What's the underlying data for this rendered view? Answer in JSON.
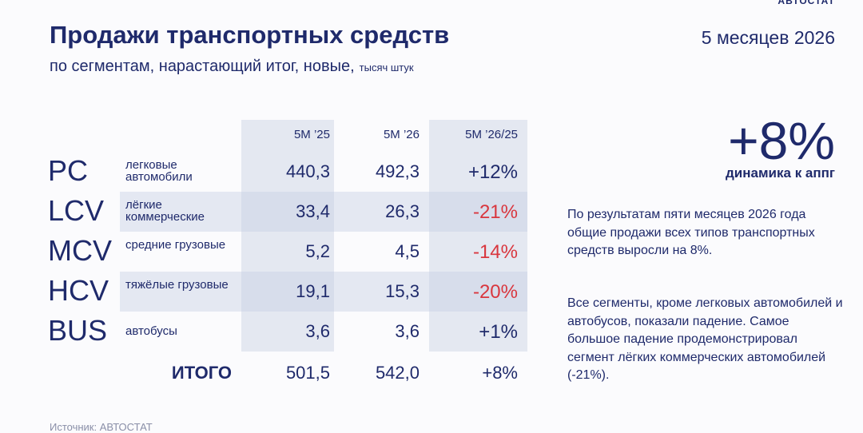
{
  "header": {
    "title": "Продажи транспортных средств",
    "subtitle": "по сегментам, нарастающий итог, новые,",
    "unit": "тысяч штук",
    "period": "5 месяцев 2026",
    "logo": "АВТОСТАТ"
  },
  "table": {
    "columns": [
      "5М ’25",
      "5М ’26",
      "5М ’26/25"
    ],
    "rows": [
      [
        "PC",
        "легковые автомобили",
        "440,3",
        "492,3",
        "+12%"
      ],
      [
        "LCV",
        "лёгкие коммерческие",
        "33,4",
        "26,3",
        "-21%"
      ],
      [
        "MCV",
        "средние грузовые",
        "5,2",
        "4,5",
        "-14%"
      ],
      [
        "HCV",
        "тяжёлые грузовые",
        "19,1",
        "15,3",
        "-20%"
      ],
      [
        "BUS",
        "автобусы",
        "3,6",
        "3,6",
        "+1%"
      ]
    ],
    "total": [
      "ИТОГО",
      "501,5",
      "542,0",
      "+8%"
    ]
  },
  "highlight": {
    "value": "+8%",
    "label": "динамика к аппг"
  },
  "paragraphs": [
    "По результатам пяти месяцев 2026 года общие продажи всех типов транспортных средств выросли на 8%.",
    "Все сегменты, кроме легковых автомобилей и автобусов, показали падение. Самое большое падение продемонстрировал сегмент лёгких коммерческих автомобилей (-21%)."
  ],
  "source": "Источник: АВТОСТАТ"
}
